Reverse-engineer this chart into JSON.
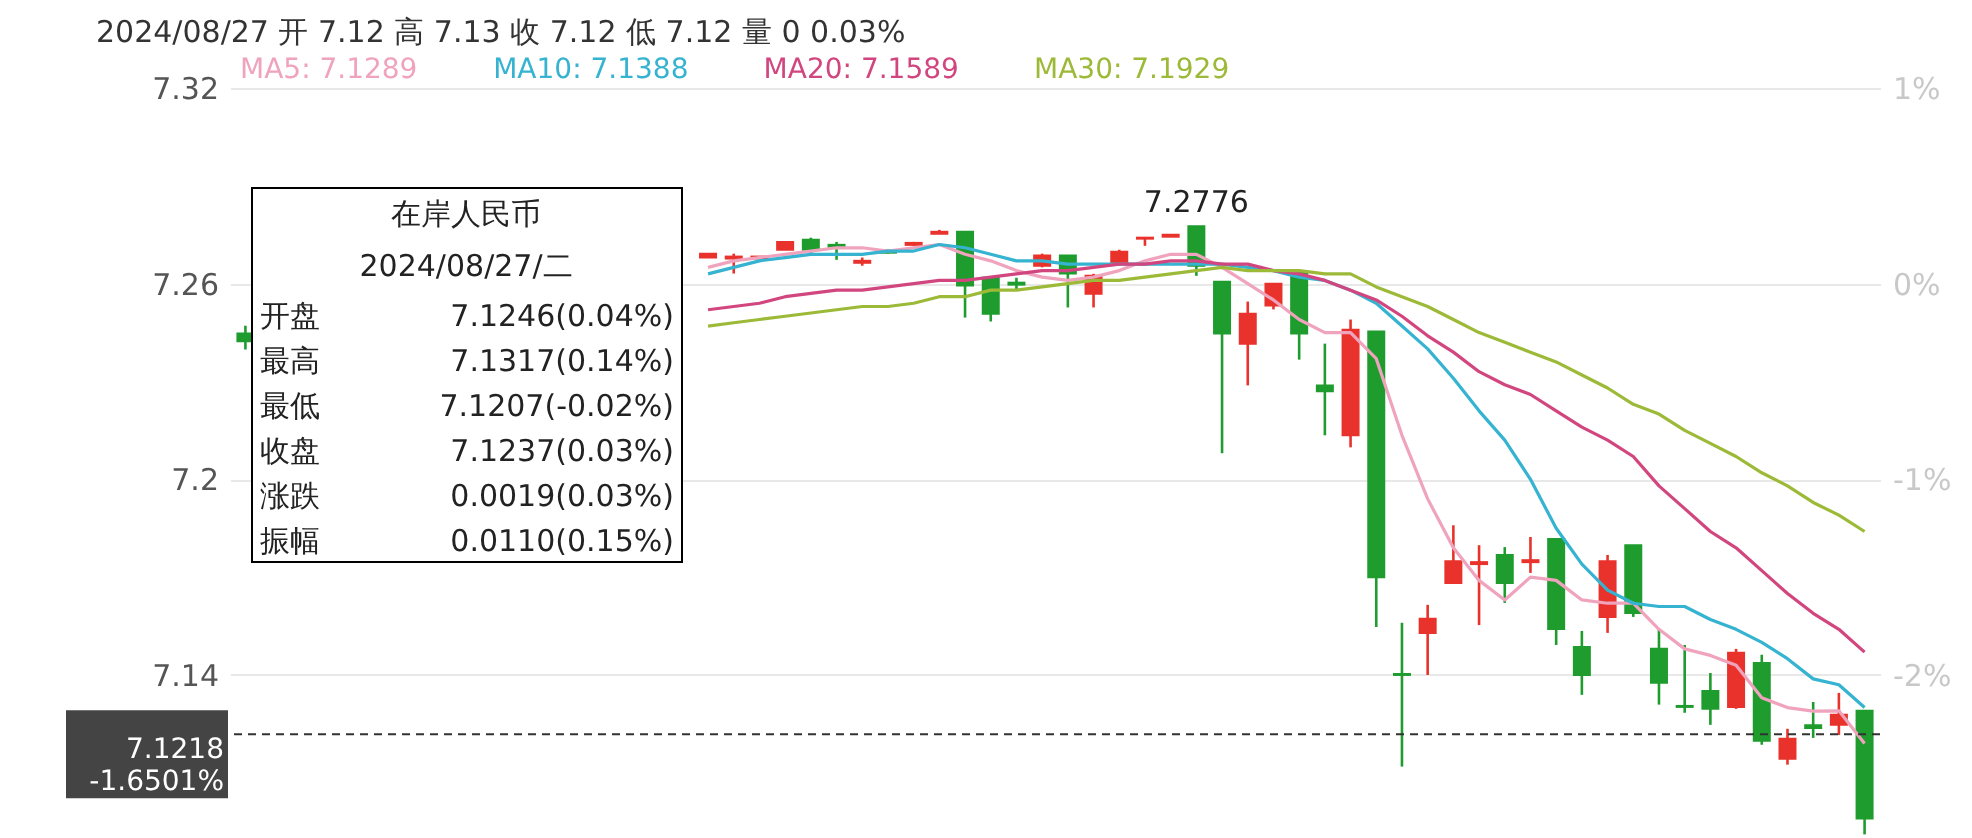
{
  "chart_data": {
    "type": "candlestick",
    "title": "2024/08/27 开 7.12 高 7.13 收 7.12 低 7.12 量 0 0.03%",
    "categories": [
      null,
      null,
      null,
      null,
      null,
      null,
      null,
      null,
      null,
      null,
      null,
      null,
      null,
      null,
      null,
      null,
      null,
      null,
      null,
      null,
      null,
      null,
      null,
      null,
      null,
      null,
      null,
      null,
      null,
      null,
      null,
      null,
      null,
      null,
      null,
      null,
      null,
      null,
      null,
      null,
      null,
      null,
      null,
      null,
      null,
      null,
      null,
      null,
      null,
      null,
      null,
      null,
      null,
      null,
      null,
      null,
      null,
      null,
      null,
      null,
      null,
      null,
      null,
      null
    ],
    "ohlc": [
      [
        7.2447,
        7.2471,
        7.2398,
        7.2423
      ],
      null,
      null,
      null,
      null,
      null,
      null,
      null,
      null,
      null,
      null,
      null,
      null,
      null,
      null,
      null,
      null,
      null,
      [
        7.268,
        7.2692,
        7.268,
        7.2692
      ],
      [
        7.2677,
        7.2692,
        7.2631,
        7.2683
      ],
      [
        7.2677,
        7.2683,
        7.2677,
        7.2683
      ],
      [
        7.2704,
        7.2728,
        7.2704,
        7.2728
      ],
      [
        7.2735,
        7.2741,
        7.2686,
        7.2704
      ],
      [
        7.2719,
        7.2728,
        7.2673,
        7.2713
      ],
      [
        7.2664,
        7.268,
        7.2655,
        7.267
      ],
      [
        7.2701,
        7.2704,
        7.2692,
        7.2695
      ],
      [
        7.2719,
        7.2728,
        7.2716,
        7.2725
      ],
      [
        7.2753,
        7.2765,
        7.2753,
        7.2759
      ],
      [
        7.2759,
        7.2759,
        7.2496,
        7.2594
      ],
      [
        7.2618,
        7.2618,
        7.2484,
        7.2508
      ],
      [
        7.2603,
        7.2618,
        7.2582,
        7.2597
      ],
      [
        7.2655,
        7.2692,
        7.265,
        7.2686
      ],
      [
        7.2686,
        7.2686,
        7.2527,
        7.2631
      ],
      [
        7.2569,
        7.263,
        7.2527,
        7.2624
      ],
      [
        7.2661,
        7.2704,
        7.2661,
        7.2698
      ],
      [
        7.2738,
        7.2741,
        7.2716,
        7.2741
      ],
      [
        7.2744,
        7.275,
        7.2744,
        7.275
      ],
      [
        7.2776,
        7.2776,
        7.2624,
        7.2655
      ],
      [
        7.2606,
        7.2606,
        7.208,
        7.2447
      ],
      [
        7.2416,
        7.2545,
        7.2288,
        7.2508
      ],
      [
        7.2533,
        7.26,
        7.2521,
        7.26
      ],
      [
        7.2637,
        7.2637,
        7.2367,
        7.2447
      ],
      [
        7.2288,
        7.2416,
        7.2135,
        7.227
      ],
      [
        7.2135,
        7.249,
        7.2098,
        7.2459
      ],
      [
        7.2453,
        7.2453,
        7.1547,
        7.17
      ],
      [
        7.1403,
        7.156,
        7.1119,
        7.14
      ],
      [
        7.1529,
        7.1615,
        7.14,
        7.1572
      ],
      [
        7.1682,
        7.1859,
        7.1682,
        7.1749
      ],
      [
        7.174,
        7.1798,
        7.1553,
        7.1746
      ],
      [
        7.1768,
        7.1792,
        7.1621,
        7.1682
      ],
      [
        7.1746,
        7.1823,
        7.1713,
        7.1752
      ],
      [
        7.1817,
        7.1817,
        7.1492,
        7.1541
      ],
      [
        7.1486,
        7.1535,
        7.1339,
        7.14
      ],
      [
        7.1578,
        7.1768,
        7.1529,
        7.1749
      ],
      [
        7.1798,
        7.1798,
        7.1578,
        7.159
      ],
      [
        7.148,
        7.1541,
        7.1309,
        7.1376
      ],
      [
        7.1305,
        7.1492,
        7.1284,
        7.1302
      ],
      [
        7.1351,
        7.1406,
        7.1247,
        7.1296
      ],
      [
        7.1302,
        7.148,
        7.1296,
        7.1468
      ],
      [
        7.1437,
        7.1462,
        7.1186,
        7.1198
      ],
      [
        7.1143,
        7.1235,
        7.1125,
        7.1204
      ],
      [
        7.1246,
        7.1317,
        7.1207,
        7.1237
      ],
      [
        7.1247,
        7.1345,
        7.1216,
        7.1278
      ],
      [
        7.129,
        7.129,
        7.0911,
        7.096
      ]
    ],
    "colors": [
      "#1e9c2e",
      null,
      null,
      null,
      null,
      null,
      null,
      null,
      null,
      null,
      null,
      null,
      null,
      null,
      null,
      null,
      null,
      null,
      "#e8322b",
      "#e8322b",
      "#e8322b",
      "#e8322b",
      "#1e9c2e",
      "#1e9c2e",
      "#e8322b",
      "#1e9c2e",
      "#e8322b",
      "#e8322b",
      "#1e9c2e",
      "#1e9c2e",
      "#1e9c2e",
      "#e8322b",
      "#1e9c2e",
      "#e8322b",
      "#e8322b",
      "#e8322b",
      "#e8322b",
      "#1e9c2e",
      "#1e9c2e",
      "#e8322b",
      "#e8322b",
      "#1e9c2e",
      "#1e9c2e",
      "#e8322b",
      "#1e9c2e",
      "#1e9c2e",
      "#e8322b",
      "#e8322b",
      "#e8322b",
      "#1e9c2e",
      "#e8322b",
      "#1e9c2e",
      "#1e9c2e",
      "#e8322b",
      "#1e9c2e",
      "#1e9c2e",
      "#1e9c2e",
      "#1e9c2e",
      "#e8322b",
      "#1e9c2e",
      "#e8322b",
      "#1e9c2e",
      "#e8322b",
      "#1e9c2e"
    ],
    "series": [
      {
        "name": "MA5: 7.1289",
        "type": "line",
        "color": "#f0a3bd",
        "values": [
          null,
          null,
          null,
          null,
          null,
          null,
          null,
          null,
          null,
          null,
          null,
          null,
          null,
          null,
          null,
          null,
          null,
          null,
          7.265,
          7.267,
          7.268,
          7.269,
          7.27,
          7.271,
          7.271,
          7.27,
          7.271,
          7.272,
          7.269,
          7.267,
          7.264,
          7.262,
          7.261,
          7.262,
          7.264,
          7.267,
          7.269,
          7.269,
          7.265,
          7.26,
          7.255,
          7.249,
          7.245,
          7.245,
          7.237,
          7.2135,
          7.194,
          7.179,
          7.169,
          7.163,
          7.17,
          7.169,
          7.163,
          7.162,
          7.162,
          7.154,
          7.148,
          7.146,
          7.143,
          7.133,
          7.13,
          7.1289,
          7.129,
          7.119
        ]
      },
      {
        "name": "MA10: 7.1388",
        "type": "line",
        "color": "#35b3d0",
        "values": [
          null,
          null,
          null,
          null,
          null,
          null,
          null,
          null,
          null,
          null,
          null,
          null,
          null,
          null,
          null,
          null,
          null,
          null,
          7.263,
          7.265,
          7.267,
          7.268,
          7.269,
          7.269,
          7.269,
          7.27,
          7.27,
          7.272,
          7.271,
          7.269,
          7.267,
          7.267,
          7.266,
          7.266,
          7.266,
          7.266,
          7.266,
          7.266,
          7.266,
          7.265,
          7.264,
          7.262,
          7.261,
          7.258,
          7.254,
          7.247,
          7.24,
          7.231,
          7.221,
          7.212,
          7.2,
          7.185,
          7.174,
          7.166,
          7.162,
          7.161,
          7.161,
          7.157,
          7.154,
          7.15,
          7.145,
          7.1388,
          7.137,
          7.13
        ]
      },
      {
        "name": "MA20: 7.1589",
        "type": "line",
        "color": "#d2467f",
        "values": [
          null,
          null,
          null,
          null,
          null,
          null,
          null,
          null,
          null,
          null,
          null,
          null,
          null,
          null,
          null,
          null,
          null,
          null,
          7.252,
          7.253,
          7.254,
          7.256,
          7.257,
          7.258,
          7.258,
          7.259,
          7.26,
          7.261,
          7.261,
          7.262,
          7.263,
          7.264,
          7.264,
          7.265,
          7.266,
          7.266,
          7.267,
          7.267,
          7.266,
          7.266,
          7.264,
          7.263,
          7.261,
          7.258,
          7.255,
          7.25,
          7.244,
          7.239,
          7.233,
          7.229,
          7.226,
          7.221,
          7.216,
          7.212,
          7.207,
          7.198,
          7.191,
          7.184,
          7.179,
          7.172,
          7.165,
          7.1589,
          7.154,
          7.147
        ]
      },
      {
        "name": "MA30: 7.1929",
        "type": "line",
        "color": "#9cba38",
        "values": [
          null,
          null,
          null,
          null,
          null,
          null,
          null,
          null,
          null,
          null,
          null,
          null,
          null,
          null,
          null,
          null,
          null,
          null,
          7.247,
          7.248,
          7.249,
          7.25,
          7.251,
          7.252,
          7.253,
          7.253,
          7.254,
          7.256,
          7.256,
          7.258,
          7.258,
          7.259,
          7.26,
          7.261,
          7.261,
          7.262,
          7.263,
          7.264,
          7.265,
          7.264,
          7.264,
          7.264,
          7.263,
          7.263,
          7.259,
          7.256,
          7.253,
          7.249,
          7.245,
          7.242,
          7.239,
          7.236,
          7.232,
          7.228,
          7.223,
          7.22,
          7.215,
          7.211,
          7.207,
          7.202,
          7.198,
          7.1929,
          7.189,
          7.184
        ]
      }
    ],
    "ylim": [
      7.09,
      7.32
    ],
    "yticks": [
      7.32,
      7.26,
      7.2,
      7.14
    ],
    "y2lim": [
      -2.8333,
      1
    ],
    "y2ticks": [
      {
        "value": 1,
        "label": "1%"
      },
      {
        "value": 0,
        "label": "0%"
      },
      {
        "value": -1,
        "label": "-1%"
      },
      {
        "value": -2,
        "label": "-2%"
      }
    ],
    "grid": "y",
    "legend": "top",
    "ref_lines": [
      {
        "axis": "y",
        "value": 7.1218,
        "label": "7.1218 -1.6501%",
        "color": "#333333",
        "line_style": "dashed"
      }
    ],
    "annotations": [
      {
        "text": "7.2776",
        "y": 7.2776
      },
      "在岸人民币",
      "2024/08/27/二",
      "开盘",
      "7.1246(0.04%)",
      "最高",
      "7.1317(0.14%)",
      "最低",
      "7.1207(-0.02%)",
      "收盘",
      "7.1237(0.03%)",
      "涨跌",
      "0.0019(0.03%)",
      "振幅",
      "0.0110(0.15%)"
    ]
  }
}
